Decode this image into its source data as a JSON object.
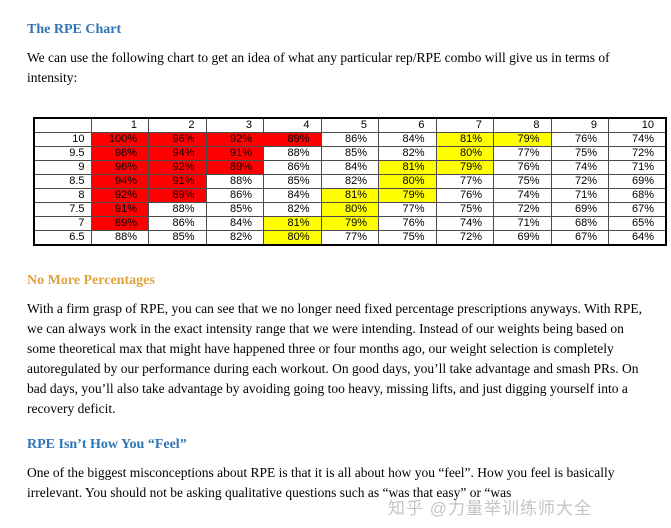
{
  "document": {
    "headings": {
      "rpe_chart": "The RPE Chart",
      "no_more_percentages": "No More Percentages",
      "rpe_isnt_how_you_feel": "RPE Isn’t How You “Feel”"
    },
    "paragraphs": {
      "intro": "We can use the following chart to get an idea of what any particular rep/RPE combo will give us in terms of intensity:",
      "no_more_percentages": "With a firm grasp of RPE, you can see that we no longer need fixed percentage prescriptions anyways. With RPE, we can always work in the exact intensity range that we were intending. Instead of our weights being based on some theoretical max that might have happened three or four months ago, our weight selection is completely autoregulated by our performance during each workout. On good days, you’ll take advantage and smash PRs. On bad days, you’ll also take advantage by avoiding going too heavy, missing lifts, and just digging yourself into a recovery deficit.",
      "rpe_isnt_how_you_feel": "One of the biggest misconceptions about RPE is that it is all about how you “feel”. How you feel is basically irrelevant. You should not be asking qualitative questions such as “was that easy” or “was"
    },
    "watermark": "知乎 @力量举训练师大全"
  },
  "colors": {
    "heading_blue": "#2E74B5",
    "heading_orange": "#E2A23B",
    "cell_red": "#FF0000",
    "cell_yellow": "#FFFF00"
  },
  "chart_data": {
    "type": "table",
    "columns": [
      "1",
      "2",
      "3",
      "4",
      "5",
      "6",
      "7",
      "8",
      "9",
      "10"
    ],
    "rows": [
      "10",
      "9.5",
      "9",
      "8.5",
      "8",
      "7.5",
      "7",
      "6.5"
    ],
    "values": [
      [
        100,
        96,
        92,
        89,
        86,
        84,
        81,
        79,
        76,
        74
      ],
      [
        98,
        94,
        91,
        88,
        85,
        82,
        80,
        77,
        75,
        72
      ],
      [
        96,
        92,
        89,
        86,
        84,
        81,
        79,
        76,
        74,
        71
      ],
      [
        94,
        91,
        88,
        85,
        82,
        80,
        77,
        75,
        72,
        69
      ],
      [
        92,
        89,
        86,
        84,
        81,
        79,
        76,
        74,
        71,
        68
      ],
      [
        91,
        88,
        85,
        82,
        80,
        77,
        75,
        72,
        69,
        67
      ],
      [
        89,
        86,
        84,
        81,
        79,
        76,
        74,
        71,
        68,
        65
      ],
      [
        88,
        85,
        82,
        80,
        77,
        75,
        72,
        69,
        67,
        64
      ]
    ],
    "unit": "%",
    "highlight": {
      "red_min": 89,
      "yellow_min": 79,
      "yellow_max": 81
    }
  }
}
